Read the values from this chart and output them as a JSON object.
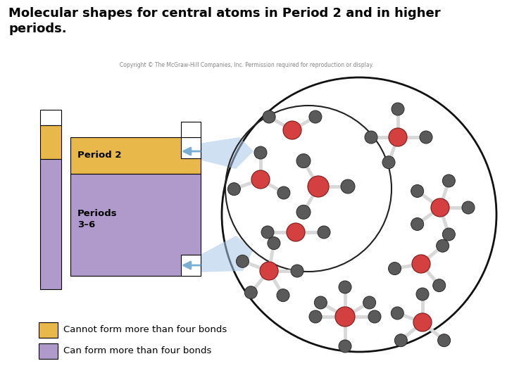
{
  "title": "Molecular shapes for central atoms in Period 2 and in higher\nperiods.",
  "title_fontsize": 13,
  "title_fontweight": "bold",
  "bg_color": "#ffffff",
  "copyright_text": "Copyright © The McGraw-Hill Companies, Inc. Permission required for reproduction or display.",
  "period2_label": "Period 2",
  "periods36_label": "Periods\n3–6",
  "legend_yellow_text": "Cannot form more than four bonds",
  "legend_purple_text": "Can form more than four bonds",
  "yellow_color": "#E8B84B",
  "purple_color": "#B09ACC",
  "red_color": "#D44040",
  "gray_color": "#5A5A5A",
  "bond_color": "#D8D8D8",
  "circle_color": "#111111",
  "arrow_color": "#A8C8E8",
  "inner_circle_color": "#222222"
}
